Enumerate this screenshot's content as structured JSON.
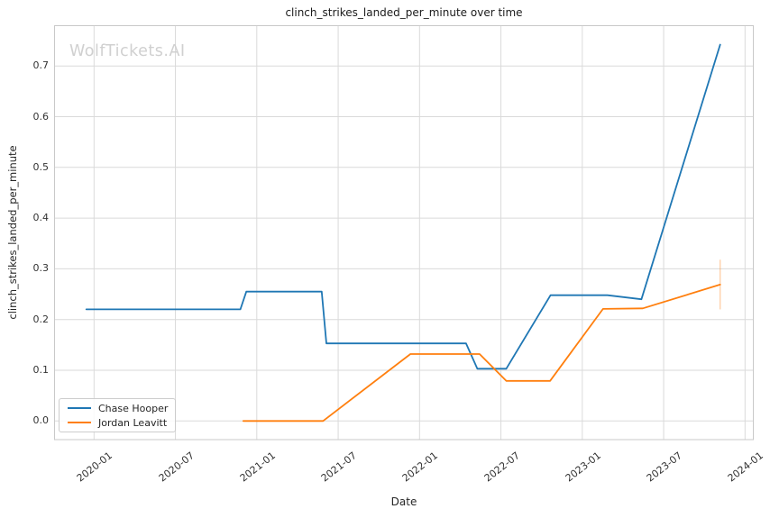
{
  "watermark": "WolfTickets.AI",
  "chart_data": {
    "type": "line",
    "title": "clinch_strikes_landed_per_minute over time",
    "xlabel": "Date",
    "ylabel": "clinch_strikes_landed_per_minute",
    "x_ticks": [
      "2020-01",
      "2020-07",
      "2021-01",
      "2021-07",
      "2022-01",
      "2022-07",
      "2023-01",
      "2023-07",
      "2024-01"
    ],
    "y_ticks": [
      "0.0",
      "0.1",
      "0.2",
      "0.3",
      "0.4",
      "0.5",
      "0.6",
      "0.7"
    ],
    "ylim": [
      -0.037,
      0.779
    ],
    "xlim_months_from_2020_01": [
      -2.94,
      48.6
    ],
    "grid": true,
    "legend_position": "lower left",
    "background": "#ffffff",
    "grid_color": "#dadada",
    "spine_color": "#c9c9c9",
    "series": [
      {
        "name": "Chase Hooper",
        "color": "#1f77b4",
        "points": [
          [
            "2019-12-14",
            0.22
          ],
          [
            "2020-11-25",
            0.22
          ],
          [
            "2020-12-08",
            0.255
          ],
          [
            "2021-05-25",
            0.255
          ],
          [
            "2021-06-05",
            0.153
          ],
          [
            "2022-04-14",
            0.153
          ],
          [
            "2022-05-09",
            0.103
          ],
          [
            "2022-07-13",
            0.103
          ],
          [
            "2022-10-21",
            0.248
          ],
          [
            "2023-02-27",
            0.248
          ],
          [
            "2023-05-12",
            0.24
          ],
          [
            "2023-11-06",
            0.742
          ]
        ]
      },
      {
        "name": "Jordan Leavitt",
        "color": "#ff7f0e",
        "points": [
          [
            "2020-12-01",
            0.0
          ],
          [
            "2021-05-28",
            0.0
          ],
          [
            "2021-12-11",
            0.132
          ],
          [
            "2022-05-14",
            0.132
          ],
          [
            "2022-07-13",
            0.079
          ],
          [
            "2022-10-20",
            0.079
          ],
          [
            "2023-02-17",
            0.221
          ],
          [
            "2023-05-15",
            0.222
          ],
          [
            "2023-11-06",
            0.269
          ]
        ],
        "error_bar_last": {
          "date": "2023-11-06",
          "low": 0.22,
          "high": 0.318
        }
      }
    ]
  },
  "legend": {
    "items": [
      {
        "label": "Chase Hooper",
        "color": "#1f77b4"
      },
      {
        "label": "Jordan Leavitt",
        "color": "#ff7f0e"
      }
    ]
  }
}
